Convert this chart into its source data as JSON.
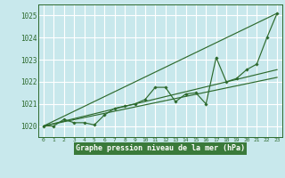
{
  "title": "Graphe pression niveau de la mer (hPa)",
  "bg_color": "#c8e8ec",
  "grid_color": "#b0d8dc",
  "plot_bg": "#c8e8ec",
  "line_color": "#2d6a2d",
  "label_bg": "#3a7a3a",
  "xlim": [
    -0.5,
    23.5
  ],
  "ylim": [
    1019.5,
    1025.5
  ],
  "yticks": [
    1020,
    1021,
    1022,
    1023,
    1024,
    1025
  ],
  "xticks": [
    0,
    1,
    2,
    3,
    4,
    5,
    6,
    7,
    8,
    9,
    10,
    11,
    12,
    13,
    14,
    15,
    16,
    17,
    18,
    19,
    20,
    21,
    22,
    23
  ],
  "zigzag": [
    1020.0,
    1020.0,
    1020.3,
    1020.15,
    1020.15,
    1020.05,
    1020.5,
    1020.8,
    1020.9,
    1021.0,
    1021.2,
    1021.75,
    1021.75,
    1021.1,
    1021.45,
    1021.5,
    1021.0,
    1023.1,
    1022.0,
    1022.15,
    1022.55,
    1022.8,
    1024.0,
    1025.1
  ],
  "trend_lines": [
    {
      "x": [
        0,
        23
      ],
      "y": [
        1020.0,
        1025.1
      ]
    },
    {
      "x": [
        0,
        23
      ],
      "y": [
        1020.0,
        1022.55
      ]
    },
    {
      "x": [
        0,
        23
      ],
      "y": [
        1020.0,
        1022.2
      ]
    }
  ]
}
